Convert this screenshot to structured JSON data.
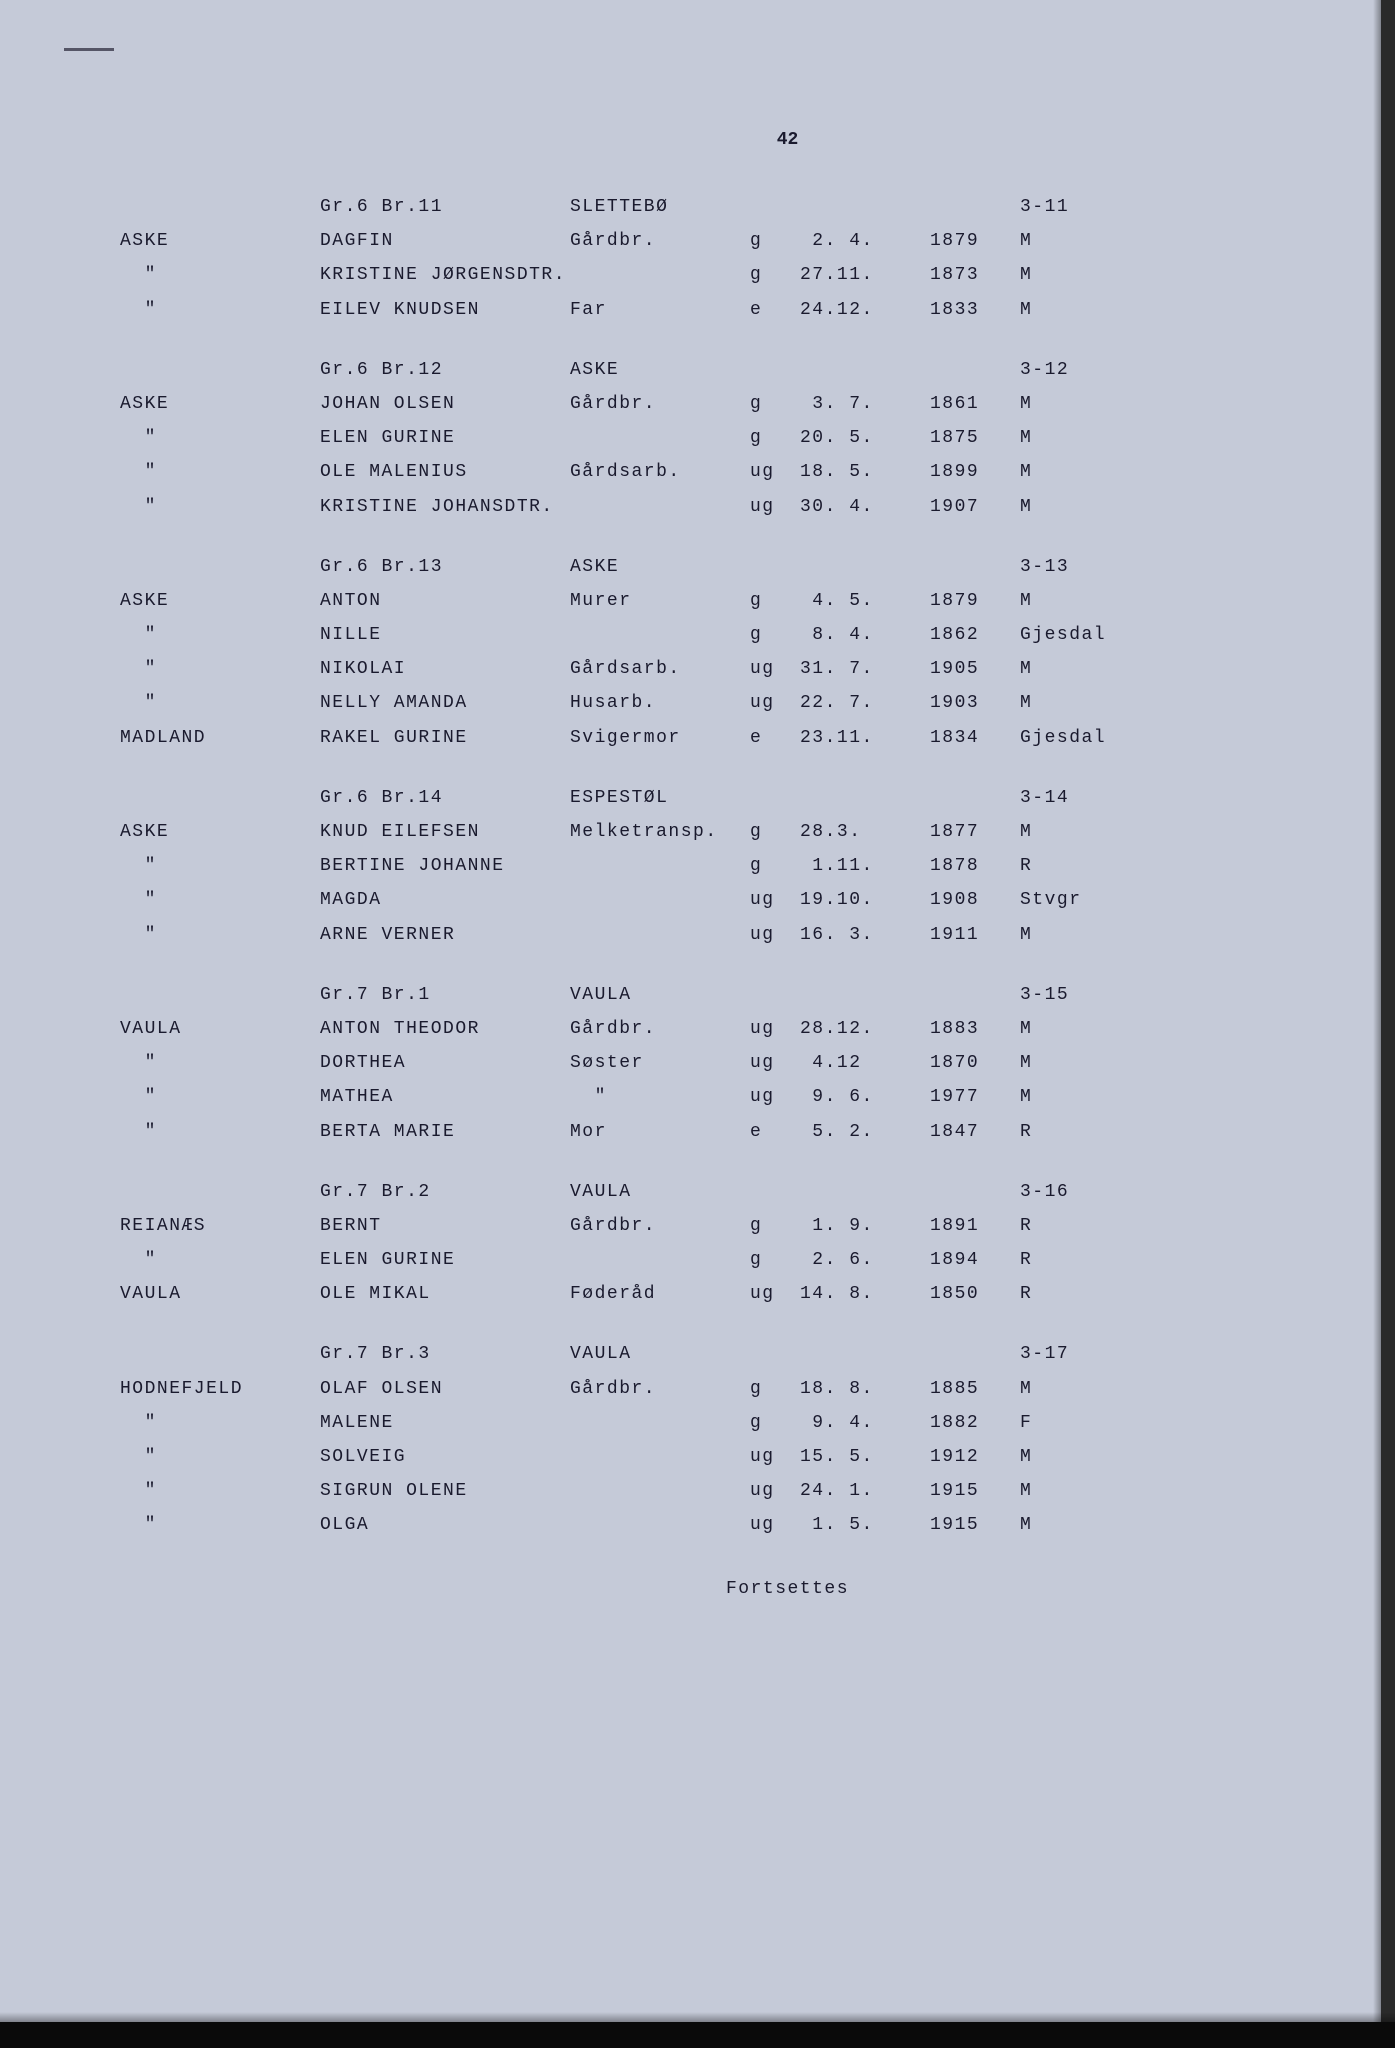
{
  "page_number": "42",
  "footer": "Fortsettes",
  "sections": [
    {
      "gr": "Gr.6 Br.11",
      "place": "SLETTEBØ",
      "code": "3-11",
      "rows": [
        {
          "surname": "ASKE",
          "name": "DAGFIN",
          "occ": "Gårdbr.",
          "stat": "g",
          "date": " 2. 4.",
          "year": "1879",
          "loc": "M"
        },
        {
          "surname": "\"",
          "name": "KRISTINE JØRGENSDTR.",
          "occ": "",
          "stat": "g",
          "date": "27.11.",
          "year": "1873",
          "loc": "M"
        },
        {
          "surname": "\"",
          "name": "EILEV KNUDSEN",
          "occ": "Far",
          "stat": "e",
          "date": "24.12.",
          "year": "1833",
          "loc": "M"
        }
      ]
    },
    {
      "gr": "Gr.6 Br.12",
      "place": "ASKE",
      "code": "3-12",
      "rows": [
        {
          "surname": "ASKE",
          "name": "JOHAN OLSEN",
          "occ": "Gårdbr.",
          "stat": "g",
          "date": " 3. 7.",
          "year": "1861",
          "loc": "M"
        },
        {
          "surname": "\"",
          "name": "ELEN GURINE",
          "occ": "",
          "stat": "g",
          "date": "20. 5.",
          "year": "1875",
          "loc": "M"
        },
        {
          "surname": "\"",
          "name": "OLE MALENIUS",
          "occ": "Gårdsarb.",
          "stat": "ug",
          "date": "18. 5.",
          "year": "1899",
          "loc": "M"
        },
        {
          "surname": "\"",
          "name": "KRISTINE JOHANSDTR.",
          "occ": "",
          "stat": "ug",
          "date": "30. 4.",
          "year": "1907",
          "loc": "M"
        }
      ]
    },
    {
      "gr": "Gr.6 Br.13",
      "place": "ASKE",
      "code": "3-13",
      "rows": [
        {
          "surname": "ASKE",
          "name": "ANTON",
          "occ": "Murer",
          "stat": "g",
          "date": " 4. 5.",
          "year": "1879",
          "loc": "M"
        },
        {
          "surname": "\"",
          "name": "NILLE",
          "occ": "",
          "stat": "g",
          "date": " 8. 4.",
          "year": "1862",
          "loc": "Gjesdal"
        },
        {
          "surname": "\"",
          "name": "NIKOLAI",
          "occ": "Gårdsarb.",
          "stat": "ug",
          "date": "31. 7.",
          "year": "1905",
          "loc": "M"
        },
        {
          "surname": "\"",
          "name": "NELLY AMANDA",
          "occ": "Husarb.",
          "stat": "ug",
          "date": "22. 7.",
          "year": "1903",
          "loc": "M"
        },
        {
          "surname": "MADLAND",
          "name": "RAKEL GURINE",
          "occ": "Svigermor",
          "stat": "e",
          "date": "23.11.",
          "year": "1834",
          "loc": "Gjesdal"
        }
      ]
    },
    {
      "gr": "Gr.6 Br.14",
      "place": "ESPESTØL",
      "code": "3-14",
      "rows": [
        {
          "surname": "ASKE",
          "name": "KNUD EILEFSEN",
          "occ": "Melketransp.",
          "stat": "g",
          "date": "28.3.",
          "year": "1877",
          "loc": "M"
        },
        {
          "surname": "\"",
          "name": "BERTINE JOHANNE",
          "occ": "",
          "stat": "g",
          "date": " 1.11.",
          "year": "1878",
          "loc": "R"
        },
        {
          "surname": "\"",
          "name": "MAGDA",
          "occ": "",
          "stat": "ug",
          "date": "19.10.",
          "year": "1908",
          "loc": "Stvgr"
        },
        {
          "surname": "\"",
          "name": "ARNE VERNER",
          "occ": "",
          "stat": "ug",
          "date": "16. 3.",
          "year": "1911",
          "loc": "M"
        }
      ]
    },
    {
      "gr": "Gr.7 Br.1",
      "place": "VAULA",
      "code": "3-15",
      "rows": [
        {
          "surname": "VAULA",
          "name": "ANTON THEODOR",
          "occ": "Gårdbr.",
          "stat": "ug",
          "date": "28.12.",
          "year": "1883",
          "loc": "M"
        },
        {
          "surname": "\"",
          "name": "DORTHEA",
          "occ": "Søster",
          "stat": "ug",
          "date": " 4.12",
          "year": "1870",
          "loc": "M"
        },
        {
          "surname": "\"",
          "name": "MATHEA",
          "occ": "\"",
          "stat": "ug",
          "date": " 9. 6.",
          "year": "1977",
          "loc": "M"
        },
        {
          "surname": "\"",
          "name": "BERTA MARIE",
          "occ": "Mor",
          "stat": "e",
          "date": " 5. 2.",
          "year": "1847",
          "loc": "R"
        }
      ]
    },
    {
      "gr": "Gr.7 Br.2",
      "place": "VAULA",
      "code": "3-16",
      "rows": [
        {
          "surname": "REIANÆS",
          "name": "BERNT",
          "occ": "Gårdbr.",
          "stat": "g",
          "date": " 1. 9.",
          "year": "1891",
          "loc": "R"
        },
        {
          "surname": "\"",
          "name": "ELEN GURINE",
          "occ": "",
          "stat": "g",
          "date": " 2. 6.",
          "year": "1894",
          "loc": "R"
        },
        {
          "surname": "VAULA",
          "name": "OLE MIKAL",
          "occ": "Føderåd",
          "stat": "ug",
          "date": "14. 8.",
          "year": "1850",
          "loc": "R"
        }
      ]
    },
    {
      "gr": "Gr.7 Br.3",
      "place": "VAULA",
      "code": "3-17",
      "rows": [
        {
          "surname": "HODNEFJELD",
          "name": "OLAF OLSEN",
          "occ": "Gårdbr.",
          "stat": "g",
          "date": "18. 8.",
          "year": "1885",
          "loc": "M"
        },
        {
          "surname": "\"",
          "name": "MALENE",
          "occ": "",
          "stat": "g",
          "date": " 9. 4.",
          "year": "1882",
          "loc": "F"
        },
        {
          "surname": "\"",
          "name": "SOLVEIG",
          "occ": "",
          "stat": "ug",
          "date": "15. 5.",
          "year": "1912",
          "loc": "M"
        },
        {
          "surname": "\"",
          "name": "SIGRUN OLENE",
          "occ": "",
          "stat": "ug",
          "date": "24. 1.",
          "year": "1915",
          "loc": "M"
        },
        {
          "surname": "\"",
          "name": "OLGA",
          "occ": "",
          "stat": "ug",
          "date": " 1. 5.",
          "year": "1915",
          "loc": "M"
        }
      ]
    }
  ]
}
